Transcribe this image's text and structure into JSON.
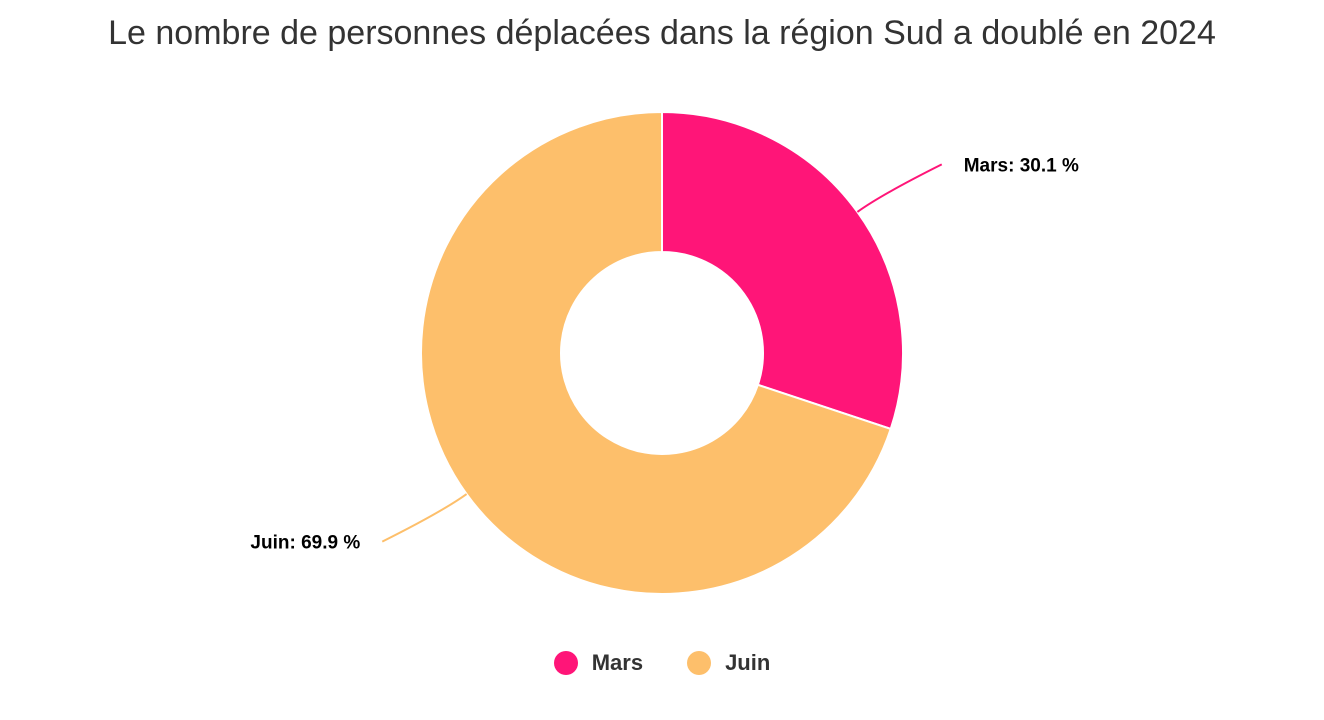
{
  "chart_data": {
    "type": "pie",
    "title": "Le nombre de personnes déplacées dans la région Sud a doublé en 2024",
    "donut": true,
    "slices": [
      {
        "label": "Mars",
        "value": 30.1,
        "color": "#ff1578",
        "data_label": "Mars: 30.1 %"
      },
      {
        "label": "Juin",
        "value": 69.9,
        "color": "#fdbf6b",
        "data_label": "Juin: 69.9 %"
      }
    ],
    "legend": {
      "placement": "bottom",
      "entries": [
        {
          "label": "Mars",
          "color": "#ff1578"
        },
        {
          "label": "Juin",
          "color": "#fdbf6b"
        }
      ]
    }
  }
}
